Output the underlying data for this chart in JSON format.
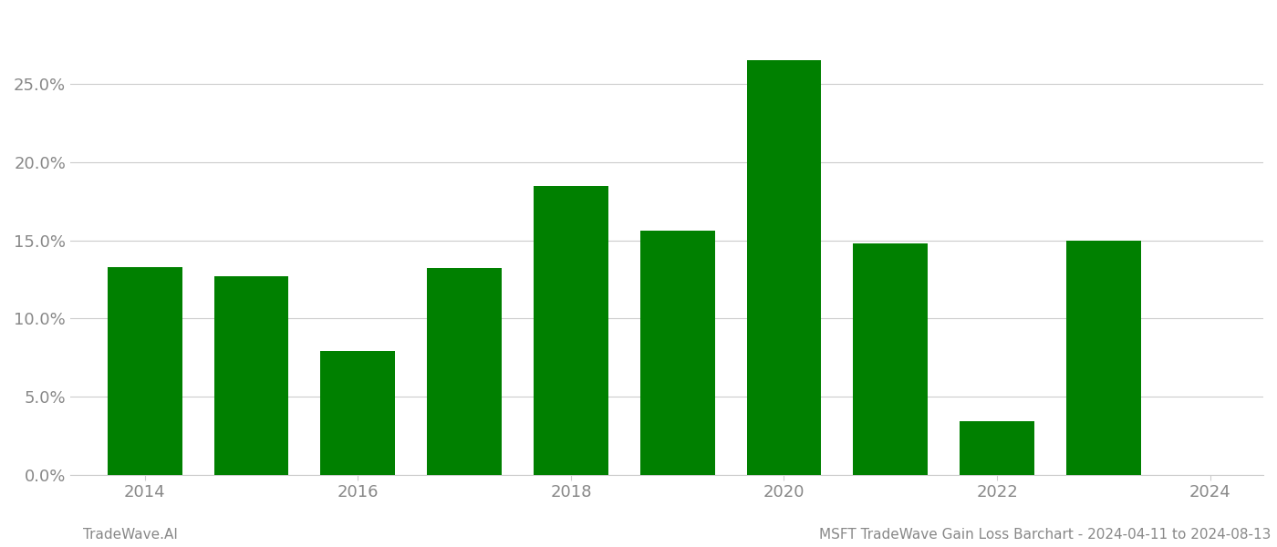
{
  "years": [
    2014,
    2015,
    2016,
    2017,
    2018,
    2019,
    2020,
    2021,
    2022,
    2023
  ],
  "values": [
    0.133,
    0.127,
    0.079,
    0.132,
    0.185,
    0.156,
    0.265,
    0.148,
    0.034,
    0.15
  ],
  "bar_color": "#008000",
  "background_color": "#ffffff",
  "footer_left": "TradeWave.AI",
  "footer_right": "MSFT TradeWave Gain Loss Barchart - 2024-04-11 to 2024-08-13",
  "ylim": [
    0,
    0.295
  ],
  "yticks": [
    0.0,
    0.05,
    0.1,
    0.15,
    0.2,
    0.25
  ],
  "xticks": [
    2014,
    2016,
    2018,
    2020,
    2022,
    2024
  ],
  "xlim": [
    2013.3,
    2024.5
  ],
  "grid_color": "#cccccc",
  "tick_label_color": "#888888",
  "footer_color": "#888888",
  "bar_width": 0.7
}
